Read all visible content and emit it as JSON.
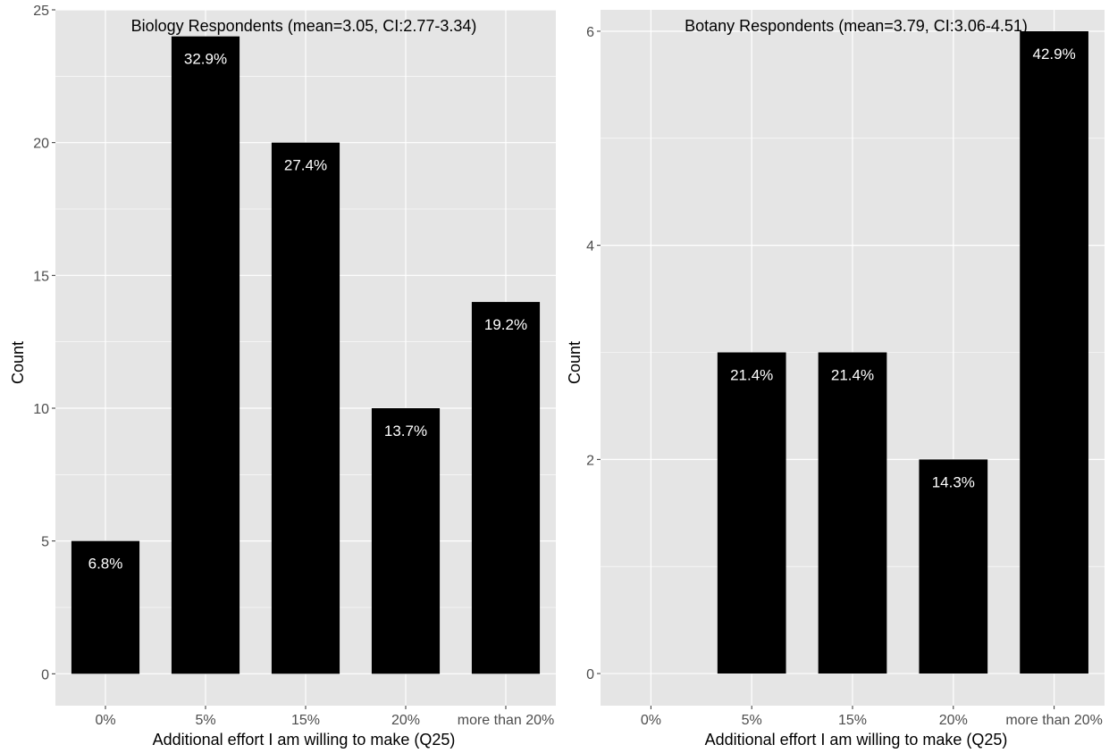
{
  "chart_data": [
    {
      "type": "bar",
      "title": "Biology Respondents (mean=3.05, CI:2.77-3.34)",
      "xlabel": "Additional effort I am willing to make (Q25)",
      "ylabel": "Count",
      "categories": [
        "0%",
        "5%",
        "15%",
        "20%",
        "more than 20%"
      ],
      "values": [
        5,
        24,
        20,
        10,
        14
      ],
      "data_labels": [
        "6.8%",
        "32.9%",
        "27.4%",
        "13.7%",
        "19.2%"
      ],
      "ylim": [
        -1.2,
        25
      ],
      "yticks": [
        0,
        5,
        10,
        15,
        20,
        25
      ],
      "bar_color": "#000000",
      "panel_background": "#e5e5e5",
      "gridline_color": "#ffffff",
      "grid": true
    },
    {
      "type": "bar",
      "title": "Botany Respondents (mean=3.79, CI:3.06-4.51)",
      "xlabel": "Additional effort I am willing to make (Q25)",
      "ylabel": "Count",
      "categories": [
        "0%",
        "5%",
        "15%",
        "20%",
        "more than 20%"
      ],
      "values": [
        0,
        3,
        3,
        2,
        6
      ],
      "data_labels": [
        "",
        "21.4%",
        "21.4%",
        "14.3%",
        "42.9%"
      ],
      "ylim": [
        -0.3,
        6.2
      ],
      "yticks": [
        0,
        2,
        4,
        6
      ],
      "bar_color": "#000000",
      "panel_background": "#e5e5e5",
      "gridline_color": "#ffffff",
      "grid": true
    }
  ]
}
